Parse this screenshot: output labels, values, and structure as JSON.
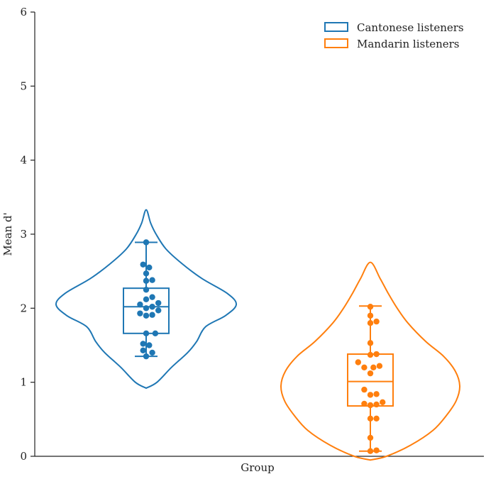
{
  "chart_data": {
    "type": "violin",
    "title": "",
    "xlabel": "Group",
    "ylabel": "Mean d'",
    "ylim": [
      0,
      6
    ],
    "yticks": [
      0,
      1,
      2,
      3,
      4,
      5,
      6
    ],
    "grid": false,
    "legend_position": "top-right",
    "series": [
      {
        "name": "Cantonese listeners",
        "color": "#1f77b4",
        "violin_profile": [
          [
            0.92,
            0.0
          ],
          [
            1.0,
            0.12
          ],
          [
            1.2,
            0.28
          ],
          [
            1.4,
            0.46
          ],
          [
            1.55,
            0.56
          ],
          [
            1.75,
            0.66
          ],
          [
            1.9,
            0.88
          ],
          [
            2.05,
            1.0
          ],
          [
            2.2,
            0.9
          ],
          [
            2.4,
            0.62
          ],
          [
            2.6,
            0.4
          ],
          [
            2.8,
            0.22
          ],
          [
            3.0,
            0.11
          ],
          [
            3.15,
            0.05
          ],
          [
            3.33,
            0.0
          ]
        ],
        "box": {
          "whisker_low": 1.35,
          "q1": 1.66,
          "median": 2.02,
          "q3": 2.27,
          "whisker_high": 2.89
        },
        "points": [
          2.89,
          2.59,
          2.55,
          2.47,
          2.38,
          2.37,
          2.25,
          2.15,
          2.12,
          2.07,
          2.05,
          2.02,
          2.0,
          1.97,
          1.93,
          1.91,
          1.9,
          1.66,
          1.66,
          1.52,
          1.5,
          1.43,
          1.4,
          1.35
        ]
      },
      {
        "name": "Mandarin listeners",
        "color": "#ff7f0e",
        "violin_profile": [
          [
            -0.05,
            0.0
          ],
          [
            0.0,
            0.18
          ],
          [
            0.15,
            0.45
          ],
          [
            0.35,
            0.7
          ],
          [
            0.55,
            0.85
          ],
          [
            0.75,
            0.96
          ],
          [
            0.95,
            1.0
          ],
          [
            1.15,
            0.95
          ],
          [
            1.35,
            0.82
          ],
          [
            1.55,
            0.62
          ],
          [
            1.8,
            0.42
          ],
          [
            2.0,
            0.3
          ],
          [
            2.2,
            0.2
          ],
          [
            2.4,
            0.11
          ],
          [
            2.62,
            0.0
          ]
        ],
        "box": {
          "whisker_low": 0.07,
          "q1": 0.68,
          "median": 1.01,
          "q3": 1.38,
          "whisker_high": 2.03
        },
        "points": [
          2.02,
          1.9,
          1.82,
          1.8,
          1.53,
          1.38,
          1.37,
          1.27,
          1.22,
          1.2,
          1.2,
          1.12,
          0.9,
          0.84,
          0.83,
          0.73,
          0.71,
          0.7,
          0.69,
          0.51,
          0.51,
          0.25,
          0.08,
          0.07
        ]
      }
    ]
  }
}
